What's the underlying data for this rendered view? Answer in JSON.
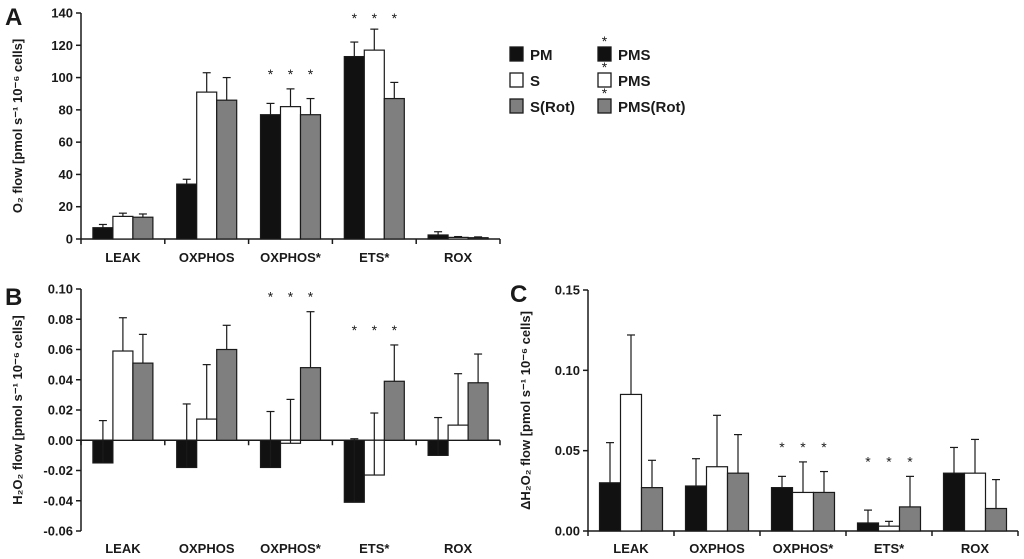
{
  "colors": {
    "black": "#111111",
    "white": "#ffffff",
    "gray": "#7f7f7f",
    "axis": "#1a1a1a"
  },
  "chart_data": [
    {
      "type": "bar",
      "panel": "A",
      "ylabel": "O₂ flow [pmol s⁻¹ 10⁻⁶ cells]",
      "ylabel_sup": "O2 flow [pmol s-1 10-6 cells]",
      "ylim": [
        0,
        140
      ],
      "yticks": [
        0,
        20,
        40,
        60,
        80,
        100,
        120,
        140
      ],
      "ytick_labels": [
        "0",
        "20",
        "40",
        "60",
        "80",
        "100",
        "120",
        "140"
      ],
      "categories": [
        "LEAK",
        "OXPHOS",
        "OXPHOS*",
        "ETS*",
        "ROX"
      ],
      "series": [
        {
          "name": "PM",
          "color": "black",
          "values": [
            7,
            34,
            77,
            113,
            2.5
          ],
          "errors": [
            2,
            3,
            7,
            9,
            2
          ]
        },
        {
          "name": "S",
          "color": "white",
          "values": [
            14,
            91,
            82,
            117,
            1
          ],
          "errors": [
            2,
            12,
            11,
            13,
            0.5
          ]
        },
        {
          "name": "S(Rot)",
          "color": "gray",
          "values": [
            13.5,
            86,
            77,
            87,
            0.8
          ],
          "errors": [
            2,
            14,
            10,
            10,
            0.5
          ]
        }
      ],
      "stars": {
        "OXPHOS*": "* * *",
        "ETS*": "* * *"
      }
    },
    {
      "type": "bar",
      "panel": "B",
      "ylabel": "H₂O₂ flow [pmol s⁻¹ 10⁻⁶ cells]",
      "ylim": [
        -0.06,
        0.1
      ],
      "yticks": [
        -0.06,
        -0.04,
        -0.02,
        0.0,
        0.02,
        0.04,
        0.06,
        0.08,
        0.1
      ],
      "ytick_labels": [
        "-0.06",
        "-0.04",
        "-0.02",
        "0.00",
        "0.02",
        "0.04",
        "0.06",
        "0.08",
        "0.10"
      ],
      "categories": [
        "LEAK",
        "OXPHOS",
        "OXPHOS*",
        "ETS*",
        "ROX"
      ],
      "series": [
        {
          "name": "PM",
          "color": "black",
          "values": [
            -0.015,
            -0.018,
            -0.018,
            -0.041,
            -0.01
          ],
          "errors": [
            0.028,
            0.042,
            0.037,
            0.042,
            0.025
          ]
        },
        {
          "name": "S",
          "color": "white",
          "values": [
            0.059,
            0.014,
            -0.002,
            -0.023,
            0.01
          ],
          "errors": [
            0.022,
            0.036,
            0.029,
            0.041,
            0.034
          ]
        },
        {
          "name": "S(Rot)",
          "color": "gray",
          "values": [
            0.051,
            0.06,
            0.048,
            0.039,
            0.038
          ],
          "errors": [
            0.019,
            0.016,
            0.037,
            0.024,
            0.019
          ]
        }
      ],
      "stars": {
        "OXPHOS*": "* * *",
        "ETS*": "* * *"
      }
    },
    {
      "type": "bar",
      "panel": "C",
      "ylabel": "ΔH₂O₂ flow [pmol s⁻¹ 10⁻⁶ cells]",
      "ylim": [
        0,
        0.15
      ],
      "yticks": [
        0.0,
        0.05,
        0.1,
        0.15
      ],
      "ytick_labels": [
        "0.00",
        "0.05",
        "0.10",
        "0.15"
      ],
      "categories": [
        "LEAK",
        "OXPHOS",
        "OXPHOS*",
        "ETS*",
        "ROX"
      ],
      "series": [
        {
          "name": "PM",
          "color": "black",
          "values": [
            0.03,
            0.028,
            0.027,
            0.005,
            0.036
          ],
          "errors": [
            0.025,
            0.017,
            0.007,
            0.008,
            0.016
          ]
        },
        {
          "name": "S",
          "color": "white",
          "values": [
            0.085,
            0.04,
            0.024,
            0.003,
            0.036
          ],
          "errors": [
            0.037,
            0.032,
            0.019,
            0.003,
            0.021
          ]
        },
        {
          "name": "S(Rot)",
          "color": "gray",
          "values": [
            0.027,
            0.036,
            0.024,
            0.015,
            0.014
          ],
          "errors": [
            0.017,
            0.024,
            0.013,
            0.019,
            0.018
          ]
        }
      ],
      "stars": {
        "OXPHOS*": "* * *",
        "ETS*": "* * *"
      }
    }
  ],
  "legend": {
    "left": [
      {
        "label": "PM",
        "color": "black",
        "star": false
      },
      {
        "label": "S",
        "color": "white",
        "star": false
      },
      {
        "label": "S(Rot)",
        "color": "gray",
        "star": false
      }
    ],
    "right": [
      {
        "label": "PMS",
        "color": "black",
        "star": true
      },
      {
        "label": "PMS",
        "color": "white",
        "star": true
      },
      {
        "label": "PMS(Rot)",
        "color": "gray",
        "star": true
      }
    ]
  }
}
